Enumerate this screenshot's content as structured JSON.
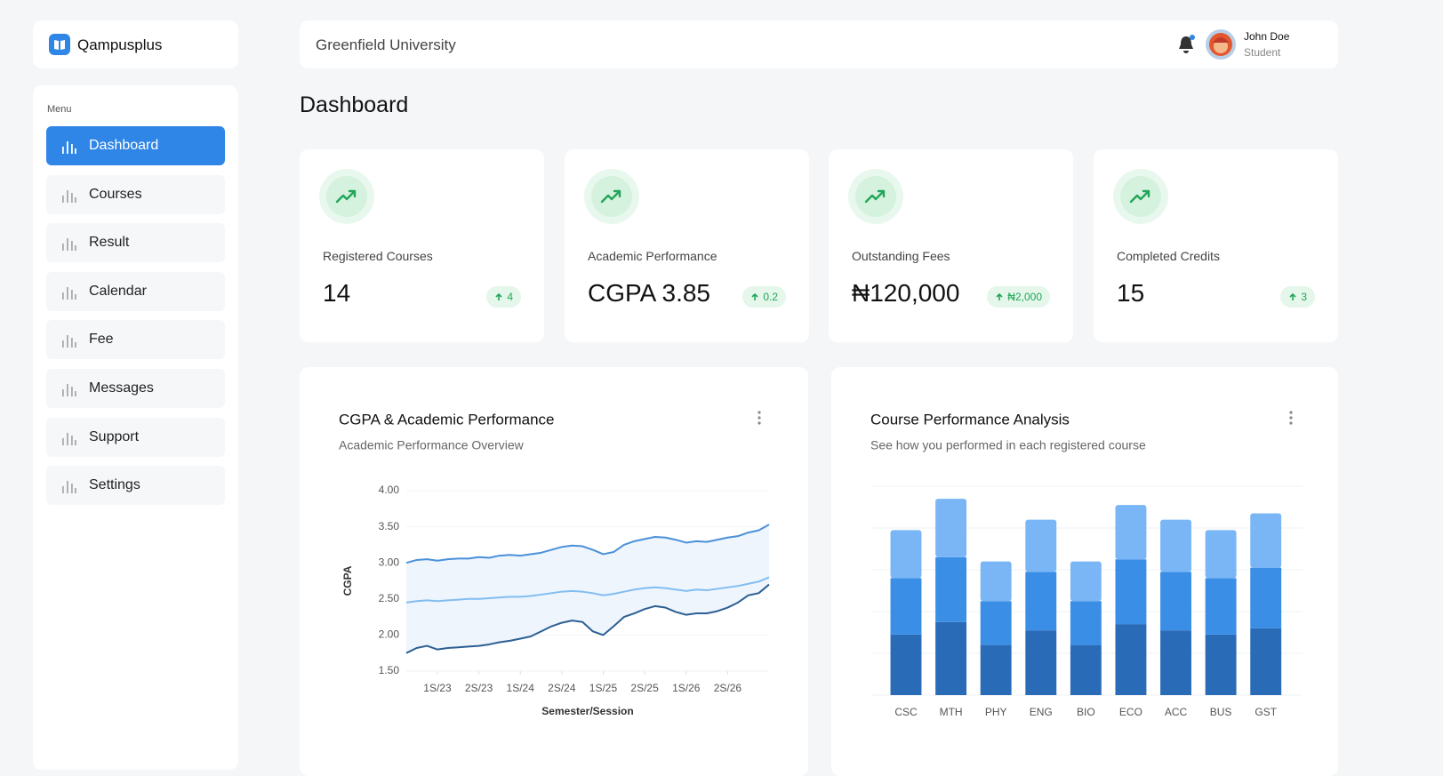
{
  "brand": "Qampusplus",
  "header": {
    "institution": "Greenfield University",
    "user_name": "John Doe",
    "user_role": "Student"
  },
  "page_title": "Dashboard",
  "menu": {
    "label": "Menu",
    "items": [
      "Dashboard",
      "Courses",
      "Result",
      "Calendar",
      "Fee",
      "Messages",
      "Support",
      "Settings"
    ],
    "active": 0
  },
  "stats": [
    {
      "label": "Registered Courses",
      "value": "14",
      "change": "4"
    },
    {
      "label": "Academic Performance",
      "value": "CGPA 3.85",
      "change": "0.2"
    },
    {
      "label": "Outstanding Fees",
      "value": "₦120,000",
      "change": "₦2,000"
    },
    {
      "label": "Completed Credits",
      "value": "15",
      "change": "3"
    }
  ],
  "chart_data": [
    {
      "type": "line",
      "title": "CGPA & Academic Performance",
      "subtitle": "Academic Performance Overview",
      "y_label": "CGPA",
      "x_label": "Semester/Session",
      "x": [
        0,
        1,
        2,
        3,
        4,
        5,
        6,
        7,
        8,
        9,
        10,
        11,
        12,
        13,
        14,
        15,
        16,
        17,
        18,
        19,
        20,
        21,
        22,
        23,
        24,
        25,
        26,
        27,
        28,
        29,
        30,
        31,
        32,
        33,
        34,
        35
      ],
      "xlim": [
        0,
        35
      ],
      "xticks": [
        {
          "value": 3,
          "label": "1S/23"
        },
        {
          "value": 7,
          "label": "2S/23"
        },
        {
          "value": 11,
          "label": "1S/24"
        },
        {
          "value": 15,
          "label": "2S/24"
        },
        {
          "value": 19,
          "label": "1S/25"
        },
        {
          "value": 23,
          "label": "2S/25"
        },
        {
          "value": 27,
          "label": "1S/26"
        },
        {
          "value": 31,
          "label": "2S/26"
        }
      ],
      "ylim": [
        1.5,
        4.0
      ],
      "yticks": [
        {
          "value": 1.5,
          "label": "1.50"
        },
        {
          "value": 2,
          "label": "2.00"
        },
        {
          "value": 2.5,
          "label": "2.50"
        },
        {
          "value": 3,
          "label": "3.00"
        },
        {
          "value": 3.5,
          "label": "3.50"
        },
        {
          "value": 4,
          "label": "4.00"
        }
      ],
      "grid": true,
      "series": [
        {
          "color": "#4a90d9",
          "values": [
            3.0,
            3.04,
            3.05,
            3.03,
            3.05,
            3.06,
            3.06,
            3.08,
            3.07,
            3.1,
            3.11,
            3.1,
            3.12,
            3.14,
            3.18,
            3.22,
            3.24,
            3.23,
            3.18,
            3.12,
            3.15,
            3.25,
            3.3,
            3.33,
            3.36,
            3.35,
            3.32,
            3.28,
            3.3,
            3.29,
            3.32,
            3.35,
            3.37,
            3.42,
            3.45,
            3.53
          ]
        },
        {
          "color": "#82bdf0",
          "values": [
            2.45,
            2.47,
            2.48,
            2.47,
            2.48,
            2.49,
            2.5,
            2.5,
            2.51,
            2.52,
            2.53,
            2.53,
            2.54,
            2.56,
            2.58,
            2.6,
            2.61,
            2.6,
            2.58,
            2.55,
            2.57,
            2.6,
            2.63,
            2.65,
            2.66,
            2.65,
            2.63,
            2.61,
            2.63,
            2.62,
            2.64,
            2.66,
            2.68,
            2.71,
            2.74,
            2.8
          ]
        },
        {
          "color": "#2c5f93",
          "values": [
            1.75,
            1.82,
            1.85,
            1.8,
            1.82,
            1.83,
            1.84,
            1.85,
            1.87,
            1.9,
            1.92,
            1.95,
            1.98,
            2.05,
            2.12,
            2.17,
            2.2,
            2.18,
            2.05,
            2.0,
            2.12,
            2.25,
            2.3,
            2.36,
            2.4,
            2.38,
            2.32,
            2.28,
            2.3,
            2.3,
            2.33,
            2.38,
            2.45,
            2.55,
            2.58,
            2.7
          ]
        }
      ]
    },
    {
      "type": "bar",
      "stacked": true,
      "title": "Course Performance Analysis",
      "subtitle": "See how you performed in each registered course",
      "categories": [
        "CSC",
        "MTH",
        "PHY",
        "ENG",
        "BIO",
        "ECO",
        "ACC",
        "BUS",
        "GST"
      ],
      "ylim": [
        0,
        100
      ],
      "yticks": [
        0,
        20,
        40,
        60,
        80,
        100
      ],
      "show_ytick_labels": false,
      "grid": true,
      "series": [
        {
          "color": "#2a6bb8",
          "values": [
            29,
            35,
            24,
            31,
            24,
            34,
            31,
            29,
            32
          ]
        },
        {
          "color": "#3a8ee6",
          "values": [
            27,
            31,
            21,
            28,
            21,
            31,
            28,
            27,
            29
          ]
        },
        {
          "color": "#7ab6f5",
          "values": [
            23,
            28,
            19,
            25,
            19,
            26,
            25,
            23,
            26
          ]
        }
      ]
    }
  ]
}
